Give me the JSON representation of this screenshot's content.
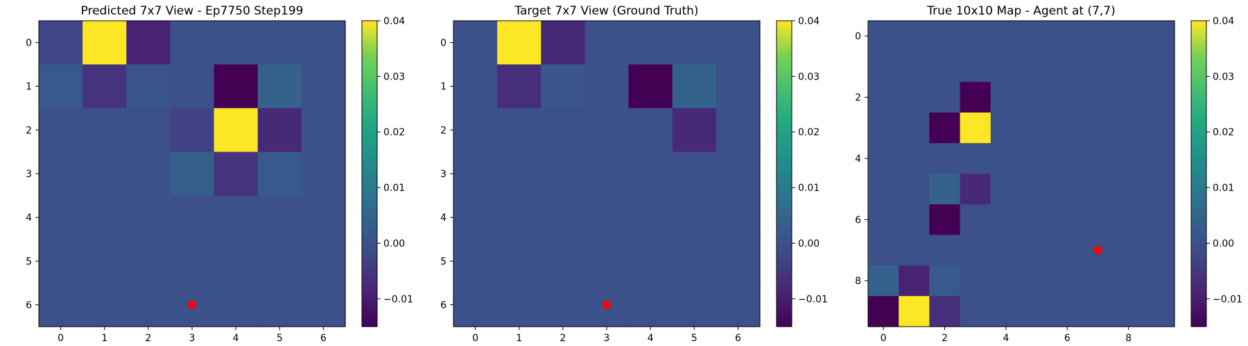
{
  "colormap": {
    "name": "viridis",
    "vmin": -0.015,
    "vmax": 0.04,
    "ticks": [
      -0.01,
      0.0,
      0.01,
      0.02,
      0.03,
      0.04
    ],
    "tick_labels": [
      "−0.01",
      "0.00",
      "0.01",
      "0.02",
      "0.03",
      "0.04"
    ]
  },
  "chart_data": [
    {
      "type": "heatmap",
      "title": "Predicted 7x7 View - Ep7750 Step199",
      "rows": 7,
      "cols": 7,
      "xticks": [
        0,
        1,
        2,
        3,
        4,
        5,
        6
      ],
      "yticks": [
        0,
        1,
        2,
        3,
        4,
        5,
        6
      ],
      "values": [
        [
          -0.002,
          0.04,
          -0.009,
          0,
          0,
          0,
          0
        ],
        [
          0.002,
          -0.006,
          0.001,
          0.0,
          -0.015,
          0.004,
          0
        ],
        [
          0,
          0,
          0,
          -0.003,
          0.04,
          -0.008,
          0
        ],
        [
          0,
          0,
          0,
          0.003,
          -0.006,
          0.002,
          0
        ],
        [
          0,
          0,
          0,
          0,
          0,
          0,
          0
        ],
        [
          0,
          0,
          0,
          0,
          0,
          0,
          0
        ],
        [
          0,
          0,
          0,
          0,
          0,
          0,
          0
        ]
      ],
      "marker": {
        "x": 3,
        "y": 6,
        "color": "#ff0000"
      }
    },
    {
      "type": "heatmap",
      "title": "Target 7x7 View (Ground Truth)",
      "rows": 7,
      "cols": 7,
      "xticks": [
        0,
        1,
        2,
        3,
        4,
        5,
        6
      ],
      "yticks": [
        0,
        1,
        2,
        3,
        4,
        5,
        6
      ],
      "values": [
        [
          0,
          0.04,
          -0.008,
          0,
          0,
          0,
          0
        ],
        [
          0,
          -0.007,
          0.001,
          0,
          -0.015,
          0.004,
          0
        ],
        [
          0,
          0,
          0,
          0,
          0,
          -0.008,
          0
        ],
        [
          0,
          0,
          0,
          0,
          0,
          0,
          0
        ],
        [
          0,
          0,
          0,
          0,
          0,
          0,
          0
        ],
        [
          0,
          0,
          0,
          0,
          0,
          0,
          0
        ],
        [
          0,
          0,
          0,
          0,
          0,
          0,
          0
        ]
      ],
      "marker": {
        "x": 3,
        "y": 6,
        "color": "#ff0000"
      }
    },
    {
      "type": "heatmap",
      "title": "True 10x10 Map - Agent at (7,7)",
      "rows": 10,
      "cols": 10,
      "xticks": [
        0,
        2,
        4,
        6,
        8
      ],
      "yticks": [
        0,
        2,
        4,
        6,
        8
      ],
      "values": [
        [
          0,
          0,
          0,
          0,
          0,
          0,
          0,
          0,
          0,
          0
        ],
        [
          0,
          0,
          0,
          0,
          0,
          0,
          0,
          0,
          0,
          0
        ],
        [
          0,
          0,
          0,
          -0.015,
          0,
          0,
          0,
          0,
          0,
          0
        ],
        [
          0,
          0,
          -0.015,
          0.04,
          0,
          0,
          0,
          0,
          0,
          0
        ],
        [
          0,
          0,
          0,
          0,
          0,
          0,
          0,
          0,
          0,
          0
        ],
        [
          0,
          0,
          0.004,
          -0.008,
          0,
          0,
          0,
          0,
          0,
          0
        ],
        [
          0,
          0,
          -0.015,
          0,
          0,
          0,
          0,
          0,
          0,
          0
        ],
        [
          0,
          0,
          0,
          0,
          0,
          0,
          0,
          0,
          0,
          0
        ],
        [
          0.004,
          -0.009,
          0.002,
          0,
          0,
          0,
          0,
          0,
          0,
          0
        ],
        [
          -0.015,
          0.04,
          -0.007,
          0,
          0,
          0,
          0,
          0,
          0,
          0
        ]
      ],
      "marker": {
        "x": 7,
        "y": 7,
        "color": "#ff0000"
      }
    }
  ]
}
